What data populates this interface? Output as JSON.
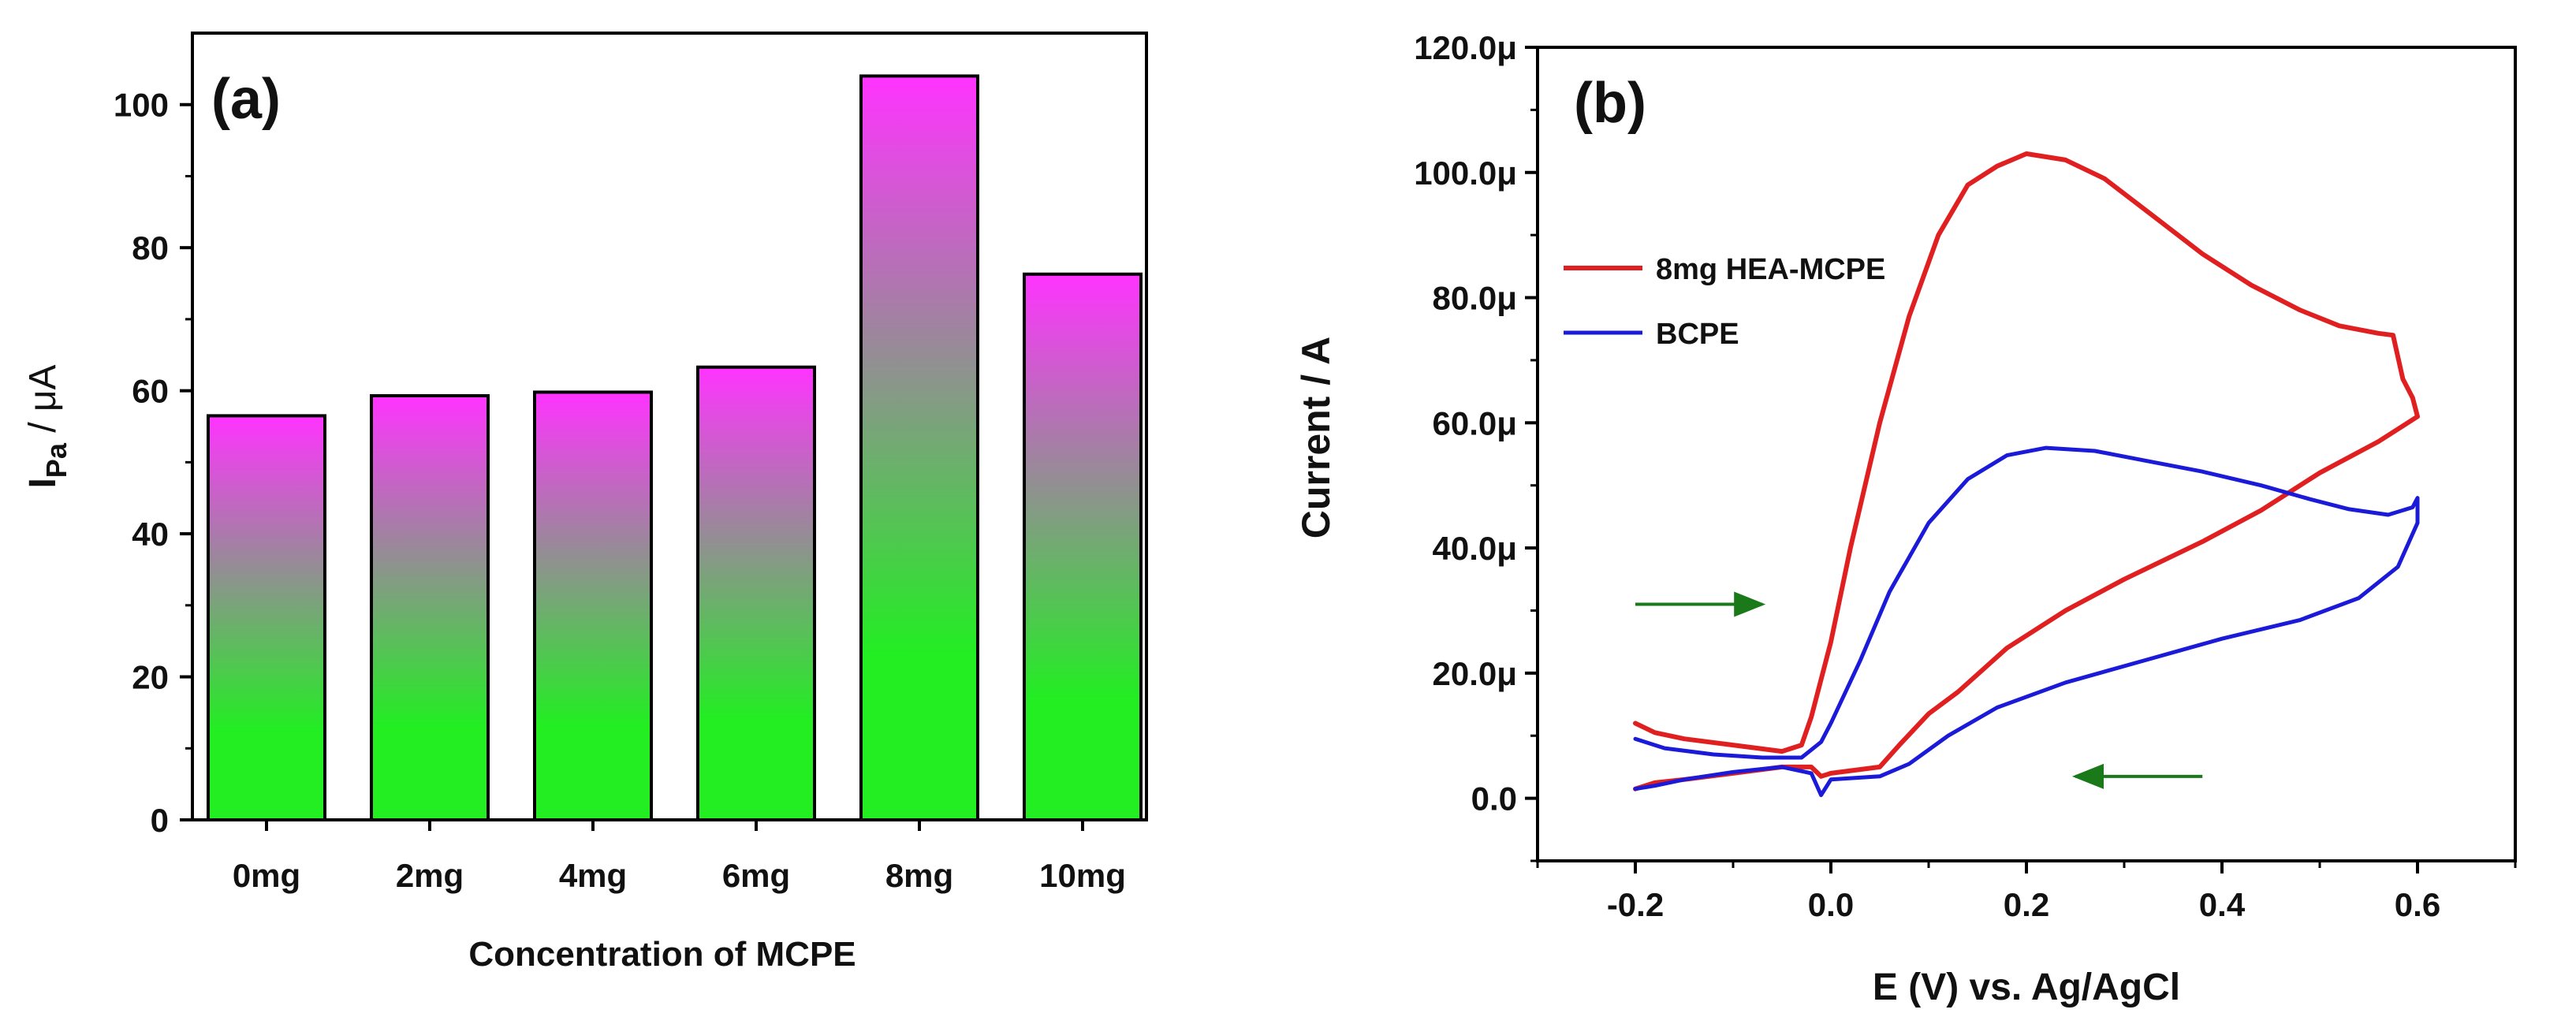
{
  "chart_data": [
    {
      "panel_label": "(a)",
      "type": "bar",
      "xlabel": "Concentration of MCPE",
      "ylabel_main": "I",
      "ylabel_sub": "Pa",
      "ylabel_unit": " / μA",
      "categories": [
        "0mg",
        "2mg",
        "4mg",
        "6mg",
        "8mg",
        "10mg"
      ],
      "values": [
        56.5,
        59.3,
        59.8,
        63.3,
        104.0,
        76.3
      ],
      "ylim": [
        0,
        110
      ],
      "yticks": [
        0,
        20,
        40,
        60,
        80,
        100
      ],
      "bar_gradient": [
        "#ff33ff",
        "#22ee22"
      ],
      "grid": false
    },
    {
      "panel_label": "(b)",
      "type": "line",
      "xlabel": "E (V) vs. Ag/AgCl",
      "ylabel": "Current / A",
      "xlim": [
        -0.3,
        0.7
      ],
      "ylim": [
        -1e-05,
        0.00012
      ],
      "xticks": [
        -0.2,
        0.0,
        0.2,
        0.4,
        0.6
      ],
      "xtick_labels": [
        "-0.2",
        "0.0",
        "0.2",
        "0.4",
        "0.6"
      ],
      "yticks": [
        0,
        2e-05,
        4e-05,
        6e-05,
        8e-05,
        0.0001,
        0.00012
      ],
      "ytick_labels": [
        "0.0",
        "20.0μ",
        "40.0μ",
        "60.0μ",
        "80.0μ",
        "100.0μ",
        "120.0μ"
      ],
      "legend_position": "upper-left",
      "annotations": [
        {
          "kind": "arrow",
          "direction": "right",
          "from": [
            -0.2,
            3.1e-05
          ],
          "to": [
            -0.07,
            3.1e-05
          ],
          "color": "#1a7a1a"
        },
        {
          "kind": "arrow",
          "direction": "left",
          "from": [
            0.38,
            3.5e-06
          ],
          "to": [
            0.25,
            3.5e-06
          ],
          "color": "#1a7a1a"
        }
      ],
      "series": [
        {
          "name": "8mg HEA-MCPE",
          "color": "#e02020",
          "points": [
            [
              -0.2,
              1.2e-05
            ],
            [
              -0.18,
              1.05e-05
            ],
            [
              -0.15,
              9.5e-06
            ],
            [
              -0.1,
              8.5e-06
            ],
            [
              -0.05,
              7.5e-06
            ],
            [
              -0.03,
              8.5e-06
            ],
            [
              -0.02,
              1.3e-05
            ],
            [
              0.0,
              2.5e-05
            ],
            [
              0.02,
              4e-05
            ],
            [
              0.05,
              6e-05
            ],
            [
              0.08,
              7.7e-05
            ],
            [
              0.11,
              9e-05
            ],
            [
              0.14,
              9.8e-05
            ],
            [
              0.17,
              0.000101
            ],
            [
              0.2,
              0.000103
            ],
            [
              0.24,
              0.000102
            ],
            [
              0.28,
              9.9e-05
            ],
            [
              0.33,
              9.3e-05
            ],
            [
              0.38,
              8.7e-05
            ],
            [
              0.43,
              8.2e-05
            ],
            [
              0.48,
              7.8e-05
            ],
            [
              0.52,
              7.55e-05
            ],
            [
              0.56,
              7.43e-05
            ],
            [
              0.575,
              7.4e-05
            ],
            [
              0.58,
              7.05e-05
            ],
            [
              0.585,
              6.7e-05
            ],
            [
              0.595,
              6.4e-05
            ],
            [
              0.6,
              6.1e-05
            ],
            [
              0.56,
              5.7e-05
            ],
            [
              0.5,
              5.2e-05
            ],
            [
              0.44,
              4.6e-05
            ],
            [
              0.38,
              4.1e-05
            ],
            [
              0.3,
              3.5e-05
            ],
            [
              0.24,
              3e-05
            ],
            [
              0.18,
              2.4e-05
            ],
            [
              0.13,
              1.7e-05
            ],
            [
              0.1,
              1.35e-05
            ],
            [
              0.07,
              8.5e-06
            ],
            [
              0.05,
              5e-06
            ],
            [
              0.0,
              4e-06
            ],
            [
              -0.01,
              3.5e-06
            ],
            [
              -0.02,
              5e-06
            ],
            [
              -0.05,
              5e-06
            ],
            [
              -0.1,
              4e-06
            ],
            [
              -0.15,
              3e-06
            ],
            [
              -0.18,
              2.5e-06
            ],
            [
              -0.2,
              1.5e-06
            ]
          ]
        },
        {
          "name": "BCPE",
          "color": "#1a1ad8",
          "points": [
            [
              -0.2,
              9.5e-06
            ],
            [
              -0.17,
              8e-06
            ],
            [
              -0.12,
              7e-06
            ],
            [
              -0.07,
              6.5e-06
            ],
            [
              -0.03,
              6.5e-06
            ],
            [
              -0.01,
              9e-06
            ],
            [
              0.0,
              1.2e-05
            ],
            [
              0.03,
              2.2e-05
            ],
            [
              0.06,
              3.3e-05
            ],
            [
              0.1,
              4.4e-05
            ],
            [
              0.14,
              5.1e-05
            ],
            [
              0.18,
              5.48e-05
            ],
            [
              0.22,
              5.6e-05
            ],
            [
              0.27,
              5.55e-05
            ],
            [
              0.32,
              5.4e-05
            ],
            [
              0.38,
              5.22e-05
            ],
            [
              0.44,
              5e-05
            ],
            [
              0.49,
              4.78e-05
            ],
            [
              0.53,
              4.62e-05
            ],
            [
              0.57,
              4.53e-05
            ],
            [
              0.595,
              4.65e-05
            ],
            [
              0.6,
              4.8e-05
            ],
            [
              0.6,
              4.4e-05
            ],
            [
              0.58,
              3.7e-05
            ],
            [
              0.54,
              3.2e-05
            ],
            [
              0.48,
              2.85e-05
            ],
            [
              0.4,
              2.55e-05
            ],
            [
              0.32,
              2.2e-05
            ],
            [
              0.24,
              1.85e-05
            ],
            [
              0.17,
              1.45e-05
            ],
            [
              0.12,
              1e-05
            ],
            [
              0.08,
              5.5e-06
            ],
            [
              0.05,
              3.5e-06
            ],
            [
              0.0,
              3e-06
            ],
            [
              -0.01,
              5e-07
            ],
            [
              -0.02,
              4e-06
            ],
            [
              -0.05,
              5e-06
            ],
            [
              -0.1,
              4.2e-06
            ],
            [
              -0.15,
              3e-06
            ],
            [
              -0.18,
              2e-06
            ],
            [
              -0.2,
              1.5e-06
            ]
          ]
        }
      ]
    }
  ]
}
